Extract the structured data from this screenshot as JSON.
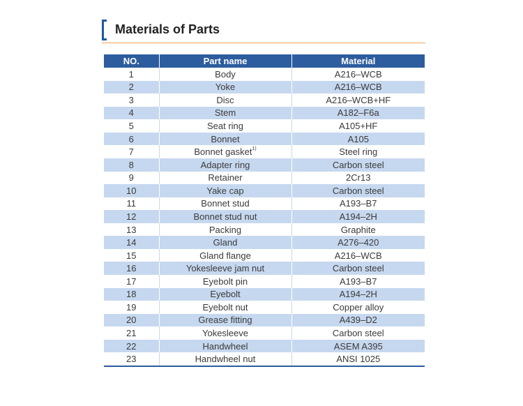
{
  "title": "Materials of Parts",
  "table": {
    "headers": {
      "no": "NO.",
      "part_name": "Part name",
      "material": "Material"
    },
    "rows": [
      {
        "no": "1",
        "part_name": "Body",
        "material": "A216–WCB"
      },
      {
        "no": "2",
        "part_name": "Yoke",
        "material": "A216–WCB"
      },
      {
        "no": "3",
        "part_name": "Disc",
        "material": "A216–WCB+HF"
      },
      {
        "no": "4",
        "part_name": "Stem",
        "material": "A182–F6a"
      },
      {
        "no": "5",
        "part_name": "Seat ring",
        "material": "A105+HF"
      },
      {
        "no": "6",
        "part_name": "Bonnet",
        "material": "A105"
      },
      {
        "no": "7",
        "part_name": "Bonnet gasket",
        "part_note": "1)",
        "material": "Steel ring"
      },
      {
        "no": "8",
        "part_name": "Adapter ring",
        "material": "Carbon steel"
      },
      {
        "no": "9",
        "part_name": "Retainer",
        "material": "2Cr13"
      },
      {
        "no": "10",
        "part_name": "Yake cap",
        "material": "Carbon steel"
      },
      {
        "no": "11",
        "part_name": "Bonnet stud",
        "material": "A193–B7"
      },
      {
        "no": "12",
        "part_name": "Bonnet stud nut",
        "material": "A194–2H"
      },
      {
        "no": "13",
        "part_name": "Packing",
        "material": "Graphite"
      },
      {
        "no": "14",
        "part_name": "Gland",
        "material": "A276–420"
      },
      {
        "no": "15",
        "part_name": "Gland flange",
        "material": "A216–WCB"
      },
      {
        "no": "16",
        "part_name": "Yokesleeve jam nut",
        "material": "Carbon steel"
      },
      {
        "no": "17",
        "part_name": "Eyebolt pin",
        "material": "A193–B7"
      },
      {
        "no": "18",
        "part_name": "Eyebolt",
        "material": "A194–2H"
      },
      {
        "no": "19",
        "part_name": "Eyebolt nut",
        "material": "Copper alloy"
      },
      {
        "no": "20",
        "part_name": "Grease fitting",
        "material": "A439–D2"
      },
      {
        "no": "21",
        "part_name": "Yokesleeve",
        "material": "Carbon steel"
      },
      {
        "no": "22",
        "part_name": "Handwheel",
        "material": "ASEM A395"
      },
      {
        "no": "23",
        "part_name": "Handwheel nut",
        "material": "ANSI 1025"
      }
    ]
  },
  "colors": {
    "header_bg": "#2d5d9e",
    "stripe_bg": "#c6d8ef",
    "accent_rule": "#f0a35a",
    "bracket": "#1e5aa0"
  }
}
